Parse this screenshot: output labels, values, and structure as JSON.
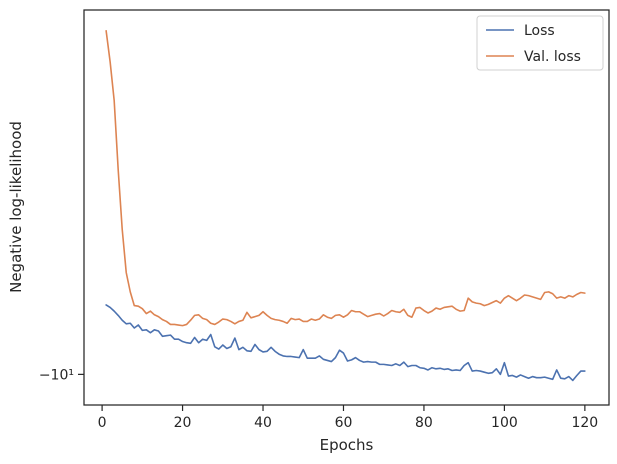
{
  "chart_data": {
    "type": "line",
    "xlabel": "Epochs",
    "ylabel": "Negative log-likelihood",
    "y_scale": "symlog",
    "xlim": [
      -4.5,
      126
    ],
    "ylim": [
      -10.57,
      -5.03
    ],
    "xticks": [
      0,
      20,
      40,
      60,
      80,
      100,
      120
    ],
    "xtick_labels": [
      "0",
      "20",
      "40",
      "60",
      "80",
      "100",
      "120"
    ],
    "yticks": [
      -10
    ],
    "ytick_labels": [
      "−10¹"
    ],
    "grid": false,
    "legend_position": "top-right",
    "series": [
      {
        "name": "Loss",
        "color": "#4c72b0",
        "x": [
          1,
          2,
          3,
          4,
          5,
          6,
          7,
          8,
          9,
          10,
          11,
          12,
          13,
          14,
          15,
          16,
          17,
          18,
          19,
          20,
          21,
          22,
          23,
          24,
          25,
          26,
          27,
          28,
          29,
          30,
          31,
          32,
          33,
          34,
          35,
          36,
          37,
          38,
          39,
          40,
          41,
          42,
          43,
          44,
          45,
          46,
          47,
          48,
          49,
          50,
          51,
          52,
          53,
          54,
          55,
          56,
          57,
          58,
          59,
          60,
          61,
          62,
          63,
          64,
          65,
          66,
          67,
          68,
          69,
          70,
          71,
          72,
          73,
          74,
          75,
          76,
          77,
          78,
          79,
          80,
          81,
          82,
          83,
          84,
          85,
          86,
          87,
          88,
          89,
          90,
          91,
          92,
          93,
          94,
          95,
          96,
          97,
          98,
          99,
          100,
          101,
          102,
          103,
          104,
          105,
          106,
          107,
          108,
          109,
          110,
          111,
          112,
          113,
          114,
          115,
          116,
          117,
          118,
          119,
          120
        ],
        "y": [
          -8.81,
          -8.85,
          -8.91,
          -8.98,
          -9.06,
          -9.12,
          -9.11,
          -9.19,
          -9.14,
          -9.23,
          -9.22,
          -9.27,
          -9.22,
          -9.24,
          -9.33,
          -9.32,
          -9.31,
          -9.38,
          -9.38,
          -9.42,
          -9.44,
          -9.45,
          -9.35,
          -9.44,
          -9.38,
          -9.4,
          -9.3,
          -9.51,
          -9.55,
          -9.48,
          -9.54,
          -9.51,
          -9.36,
          -9.56,
          -9.52,
          -9.58,
          -9.59,
          -9.47,
          -9.56,
          -9.6,
          -9.59,
          -9.52,
          -9.59,
          -9.64,
          -9.67,
          -9.68,
          -9.68,
          -9.69,
          -9.7,
          -9.56,
          -9.71,
          -9.71,
          -9.71,
          -9.67,
          -9.73,
          -9.75,
          -9.77,
          -9.7,
          -9.57,
          -9.62,
          -9.76,
          -9.74,
          -9.7,
          -9.75,
          -9.78,
          -9.77,
          -9.78,
          -9.78,
          -9.82,
          -9.82,
          -9.83,
          -9.84,
          -9.81,
          -9.84,
          -9.78,
          -9.86,
          -9.84,
          -9.84,
          -9.88,
          -9.89,
          -9.92,
          -9.88,
          -9.9,
          -9.89,
          -9.91,
          -9.9,
          -9.93,
          -9.92,
          -9.93,
          -9.84,
          -9.79,
          -9.94,
          -9.93,
          -9.94,
          -9.96,
          -9.98,
          -9.97,
          -9.9,
          -10.0,
          -9.79,
          -10.03,
          -10.02,
          -10.05,
          -10.01,
          -10.04,
          -10.07,
          -10.04,
          -10.06,
          -10.06,
          -10.05,
          -10.07,
          -10.09,
          -9.92,
          -10.07,
          -10.08,
          -10.04,
          -10.11,
          -10.02,
          -9.94,
          -9.94
        ]
      },
      {
        "name": "Val. loss",
        "color": "#dd8452",
        "x": [
          1,
          2,
          3,
          4,
          5,
          6,
          7,
          8,
          9,
          10,
          11,
          12,
          13,
          14,
          15,
          16,
          17,
          18,
          19,
          20,
          21,
          22,
          23,
          24,
          25,
          26,
          27,
          28,
          29,
          30,
          31,
          32,
          33,
          34,
          35,
          36,
          37,
          38,
          39,
          40,
          41,
          42,
          43,
          44,
          45,
          46,
          47,
          48,
          49,
          50,
          51,
          52,
          53,
          54,
          55,
          56,
          57,
          58,
          59,
          60,
          61,
          62,
          63,
          64,
          65,
          66,
          67,
          68,
          69,
          70,
          71,
          72,
          73,
          74,
          75,
          76,
          77,
          78,
          79,
          80,
          81,
          82,
          83,
          84,
          85,
          86,
          87,
          88,
          89,
          90,
          91,
          92,
          93,
          94,
          95,
          96,
          97,
          98,
          99,
          100,
          101,
          102,
          103,
          104,
          105,
          106,
          107,
          108,
          109,
          110,
          111,
          112,
          113,
          114,
          115,
          116,
          117,
          118,
          119,
          120
        ],
        "y": [
          -5.24,
          -5.57,
          -6.0,
          -6.85,
          -7.66,
          -8.3,
          -8.6,
          -8.82,
          -8.83,
          -8.87,
          -8.95,
          -8.91,
          -8.97,
          -9.0,
          -9.05,
          -9.08,
          -9.13,
          -9.13,
          -9.14,
          -9.15,
          -9.13,
          -9.06,
          -8.98,
          -8.97,
          -9.03,
          -9.05,
          -9.11,
          -9.13,
          -9.09,
          -9.04,
          -9.05,
          -9.08,
          -9.12,
          -9.08,
          -9.06,
          -8.93,
          -9.02,
          -9.0,
          -8.98,
          -8.92,
          -8.98,
          -9.03,
          -9.05,
          -9.06,
          -9.08,
          -9.11,
          -9.03,
          -9.05,
          -9.04,
          -9.08,
          -9.08,
          -9.04,
          -9.06,
          -9.04,
          -8.97,
          -9.01,
          -9.03,
          -8.98,
          -8.97,
          -9.01,
          -8.97,
          -8.9,
          -8.92,
          -8.92,
          -8.96,
          -9.0,
          -8.98,
          -8.96,
          -8.95,
          -8.99,
          -8.95,
          -8.9,
          -8.92,
          -8.93,
          -8.88,
          -8.98,
          -9.01,
          -8.86,
          -8.85,
          -8.9,
          -8.94,
          -8.91,
          -8.86,
          -8.88,
          -8.85,
          -8.84,
          -8.83,
          -8.88,
          -8.91,
          -8.9,
          -8.7,
          -8.76,
          -8.78,
          -8.79,
          -8.82,
          -8.8,
          -8.77,
          -8.74,
          -8.78,
          -8.7,
          -8.66,
          -8.7,
          -8.74,
          -8.7,
          -8.65,
          -8.66,
          -8.68,
          -8.7,
          -8.72,
          -8.61,
          -8.6,
          -8.63,
          -8.7,
          -8.68,
          -8.7,
          -8.66,
          -8.68,
          -8.64,
          -8.61,
          -8.62
        ]
      }
    ]
  }
}
